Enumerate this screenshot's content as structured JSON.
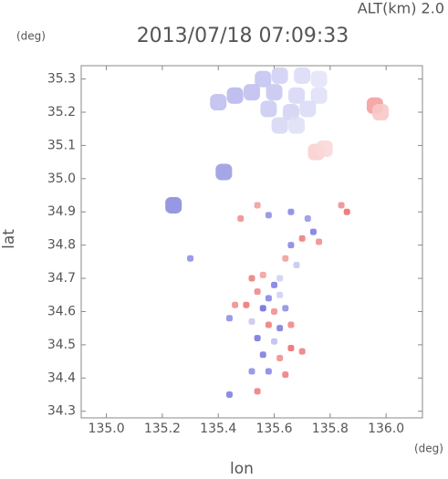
{
  "chart_data": {
    "type": "scatter",
    "title": "2013/07/18 07:09:33",
    "subtitle": "ALT(km) 2.0",
    "x_label": "lon",
    "y_label": "lat",
    "x_unit": "(deg)",
    "y_unit": "(deg)",
    "xlim": [
      134.91,
      136.13
    ],
    "ylim": [
      34.28,
      35.34
    ],
    "xticks": [
      {
        "value": 135.0,
        "label": "135.0"
      },
      135.2,
      135.4,
      135.6,
      135.8,
      {
        "value": 136.0,
        "label": "136.0"
      }
    ],
    "yticks": [
      35.3,
      35.2,
      35.1,
      {
        "value": 35.0,
        "label": "35.0"
      },
      34.9,
      34.8,
      34.7,
      34.6,
      34.5,
      34.4,
      34.3
    ],
    "x": [
      135.56,
      135.62,
      135.7,
      135.76,
      135.52,
      135.6,
      135.68,
      135.76,
      135.58,
      135.66,
      135.72,
      135.62,
      135.68,
      135.46,
      135.4,
      135.96,
      135.98,
      135.75,
      135.78,
      135.42,
      135.24,
      135.52,
      135.56,
      135.6,
      135.54,
      135.58,
      135.62,
      135.5,
      135.56,
      135.6,
      135.64,
      135.52,
      135.58,
      135.62,
      135.66,
      135.54,
      135.6,
      135.66,
      135.7,
      135.56,
      135.62,
      135.58,
      135.64,
      135.52,
      135.46,
      135.44,
      135.54,
      135.44,
      135.66,
      135.7,
      135.74,
      135.76,
      135.64,
      135.68,
      135.86,
      135.84,
      135.58,
      135.66,
      135.72,
      135.48,
      135.54,
      135.3,
      135.62
    ],
    "y": [
      35.3,
      35.31,
      35.31,
      35.3,
      35.26,
      35.26,
      35.25,
      35.25,
      35.21,
      35.2,
      35.21,
      35.16,
      35.16,
      35.25,
      35.23,
      35.22,
      35.2,
      35.08,
      35.09,
      35.02,
      34.92,
      34.7,
      34.71,
      34.68,
      34.66,
      34.64,
      34.65,
      34.62,
      34.61,
      34.6,
      34.61,
      34.57,
      34.56,
      34.55,
      34.56,
      34.52,
      34.51,
      34.49,
      34.48,
      34.47,
      34.46,
      34.42,
      34.41,
      34.42,
      34.62,
      34.58,
      34.36,
      34.35,
      34.8,
      34.82,
      34.84,
      34.81,
      34.76,
      34.74,
      34.9,
      34.92,
      34.89,
      34.9,
      34.88,
      34.88,
      34.92,
      34.76,
      34.7
    ],
    "colors": [
      "#c4c4f2",
      "#d0d0f4",
      "#dcdcf6",
      "#e4e4f8",
      "#c0c0f0",
      "#c8c8f2",
      "#d8d8f6",
      "#e0e0f8",
      "#ccccf2",
      "#d4d4f4",
      "#dcdcf6",
      "#d8d8f4",
      "#e0e0f6",
      "#b8b8ee",
      "#c0c0f0",
      "#f4a0a0",
      "#f8c8c8",
      "#f8d0d0",
      "#fad8d8",
      "#9c9ce4",
      "#8c8ce0",
      "#f08080",
      "#f4a0a0",
      "#8080e8",
      "#f08888",
      "#8888e8",
      "#d0d0f4",
      "#f07878",
      "#7070e0",
      "#f09090",
      "#9090e8",
      "#c8c8f2",
      "#f08080",
      "#8080e0",
      "#f08888",
      "#7878e0",
      "#c0c0f0",
      "#f07070",
      "#f08080",
      "#8080e0",
      "#f09090",
      "#8888e8",
      "#f08080",
      "#9090e8",
      "#f09090",
      "#9090e8",
      "#f08080",
      "#8080e0",
      "#8888e8",
      "#f08080",
      "#8080e0",
      "#f09090",
      "#f0a0a0",
      "#c8c8f2",
      "#f07070",
      "#f09090",
      "#9090e8",
      "#8888e8",
      "#9898ea",
      "#f09090",
      "#f0a0a0",
      "#9090e8",
      "#d0d0f4"
    ]
  }
}
